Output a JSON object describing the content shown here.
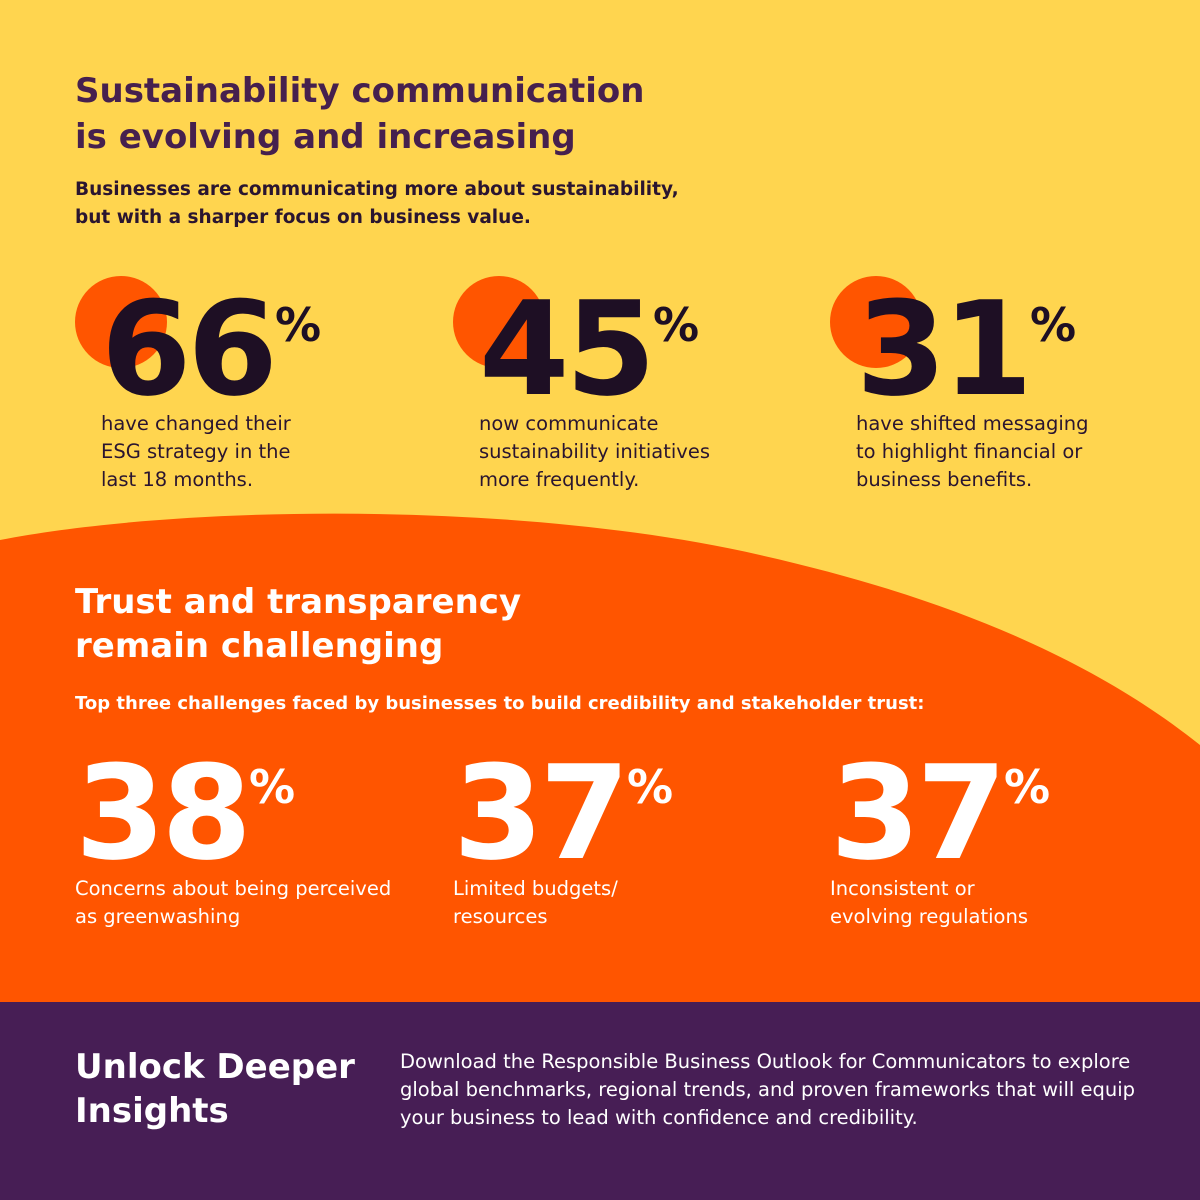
{
  "section1": {
    "title_line1": "Sustainability communication",
    "title_line2": "is evolving and increasing",
    "subtitle_line1": "Businesses are communicating more about sustainability,",
    "subtitle_line2": "but with a sharper focus on business value.",
    "stats": [
      {
        "value": "66",
        "unit": "%",
        "desc_lines": [
          "have changed their",
          "ESG strategy in the",
          "last 18 months."
        ]
      },
      {
        "value": "45",
        "unit": "%",
        "desc_lines": [
          "now communicate",
          "sustainability initiatives",
          "more frequently."
        ]
      },
      {
        "value": "31",
        "unit": "%",
        "desc_lines": [
          "have shifted messaging",
          "to highlight financial or",
          "business benefits."
        ]
      }
    ]
  },
  "section2": {
    "title_line1": "Trust and transparency",
    "title_line2": "remain challenging",
    "subtitle": "Top three challenges faced by businesses to build credibility and stakeholder trust:",
    "stats": [
      {
        "value": "38",
        "unit": "%",
        "desc_lines": [
          "Concerns about being perceived",
          "as greenwashing"
        ]
      },
      {
        "value": "37",
        "unit": "%",
        "desc_lines": [
          "Limited budgets/",
          "resources"
        ]
      },
      {
        "value": "37",
        "unit": "%",
        "desc_lines": [
          "Inconsistent or",
          "evolving regulations"
        ]
      }
    ]
  },
  "section3": {
    "title_line1": "Unlock Deeper",
    "title_line2": "Insights",
    "body_lines": [
      "Download the Responsible Business Outlook for Communicators to explore",
      "global benchmarks, regional trends, and proven frameworks that will equip",
      "your business to lead with confidence and credibility."
    ]
  },
  "colors": {
    "yellow_background": "#FFD54F",
    "orange_accent": "#FF5500",
    "purple_dark": "#471E55",
    "heading_purple": "#46204E",
    "text_dark": "#1E0F24",
    "white": "#FFFFFF"
  }
}
